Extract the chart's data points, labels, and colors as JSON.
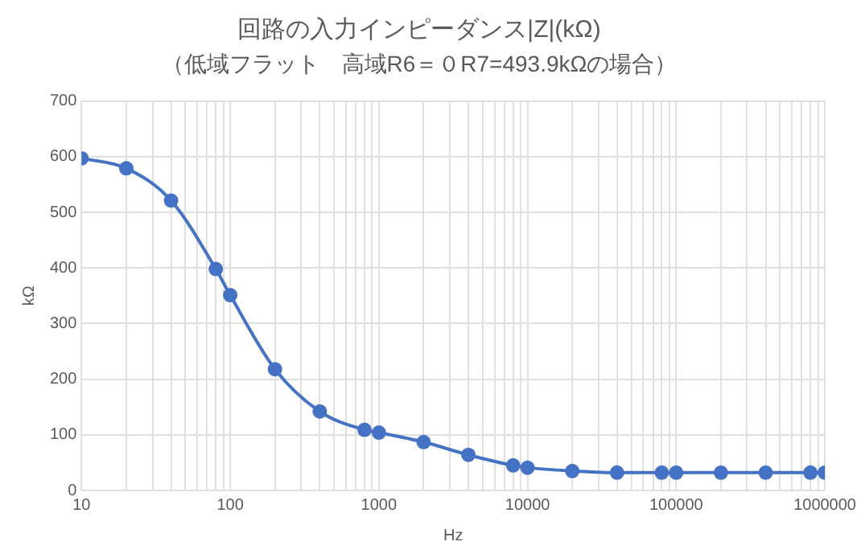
{
  "chart_data": {
    "type": "line",
    "title": "回路の入力インピーダンス|Z|(kΩ)",
    "subtitle": "（低域フラット　高域R6＝０R7=493.9kΩの場合）",
    "xlabel": "Hz",
    "ylabel": "kΩ",
    "log": "x",
    "x": [
      10,
      20,
      40,
      80,
      100,
      200,
      400,
      800,
      1000,
      2000,
      4000,
      8000,
      10000,
      20000,
      40000,
      80000,
      100000,
      200000,
      400000,
      800000,
      1000000
    ],
    "series": [
      {
        "color": "#4472c4",
        "values": [
          597,
          579,
          521,
          398,
          351,
          218,
          142,
          109,
          104,
          87,
          64,
          45,
          41,
          35,
          32,
          32,
          32,
          32,
          32,
          32,
          32
        ]
      }
    ],
    "xlim": [
      10,
      1000000
    ],
    "xticks": [
      10,
      {
        "value": 20,
        "label": null
      },
      {
        "value": 30,
        "label": null
      },
      {
        "value": 40,
        "label": null
      },
      {
        "value": 50,
        "label": null
      },
      {
        "value": 60,
        "label": null
      },
      {
        "value": 70,
        "label": null
      },
      {
        "value": 80,
        "label": null
      },
      {
        "value": 90,
        "label": null
      },
      100,
      {
        "value": 200,
        "label": null
      },
      {
        "value": 300,
        "label": null
      },
      {
        "value": 400,
        "label": null
      },
      {
        "value": 500,
        "label": null
      },
      {
        "value": 600,
        "label": null
      },
      {
        "value": 700,
        "label": null
      },
      {
        "value": 800,
        "label": null
      },
      {
        "value": 900,
        "label": null
      },
      1000,
      {
        "value": 2000,
        "label": null
      },
      {
        "value": 3000,
        "label": null
      },
      {
        "value": 4000,
        "label": null
      },
      {
        "value": 5000,
        "label": null
      },
      {
        "value": 6000,
        "label": null
      },
      {
        "value": 7000,
        "label": null
      },
      {
        "value": 8000,
        "label": null
      },
      {
        "value": 9000,
        "label": null
      },
      10000,
      {
        "value": 20000,
        "label": null
      },
      {
        "value": 30000,
        "label": null
      },
      {
        "value": 40000,
        "label": null
      },
      {
        "value": 50000,
        "label": null
      },
      {
        "value": 60000,
        "label": null
      },
      {
        "value": 70000,
        "label": null
      },
      {
        "value": 80000,
        "label": null
      },
      {
        "value": 90000,
        "label": null
      },
      100000,
      {
        "value": 200000,
        "label": null
      },
      {
        "value": 300000,
        "label": null
      },
      {
        "value": 400000,
        "label": null
      },
      {
        "value": 500000,
        "label": null
      },
      {
        "value": 600000,
        "label": null
      },
      {
        "value": 700000,
        "label": null
      },
      {
        "value": 800000,
        "label": null
      },
      {
        "value": 900000,
        "label": null
      },
      1000000
    ],
    "ylim": [
      0,
      700
    ],
    "yticks": [
      0,
      100,
      200,
      300,
      400,
      500,
      600,
      700
    ],
    "grid": true,
    "legend": false,
    "marker": "circle",
    "line_style": "solid"
  }
}
